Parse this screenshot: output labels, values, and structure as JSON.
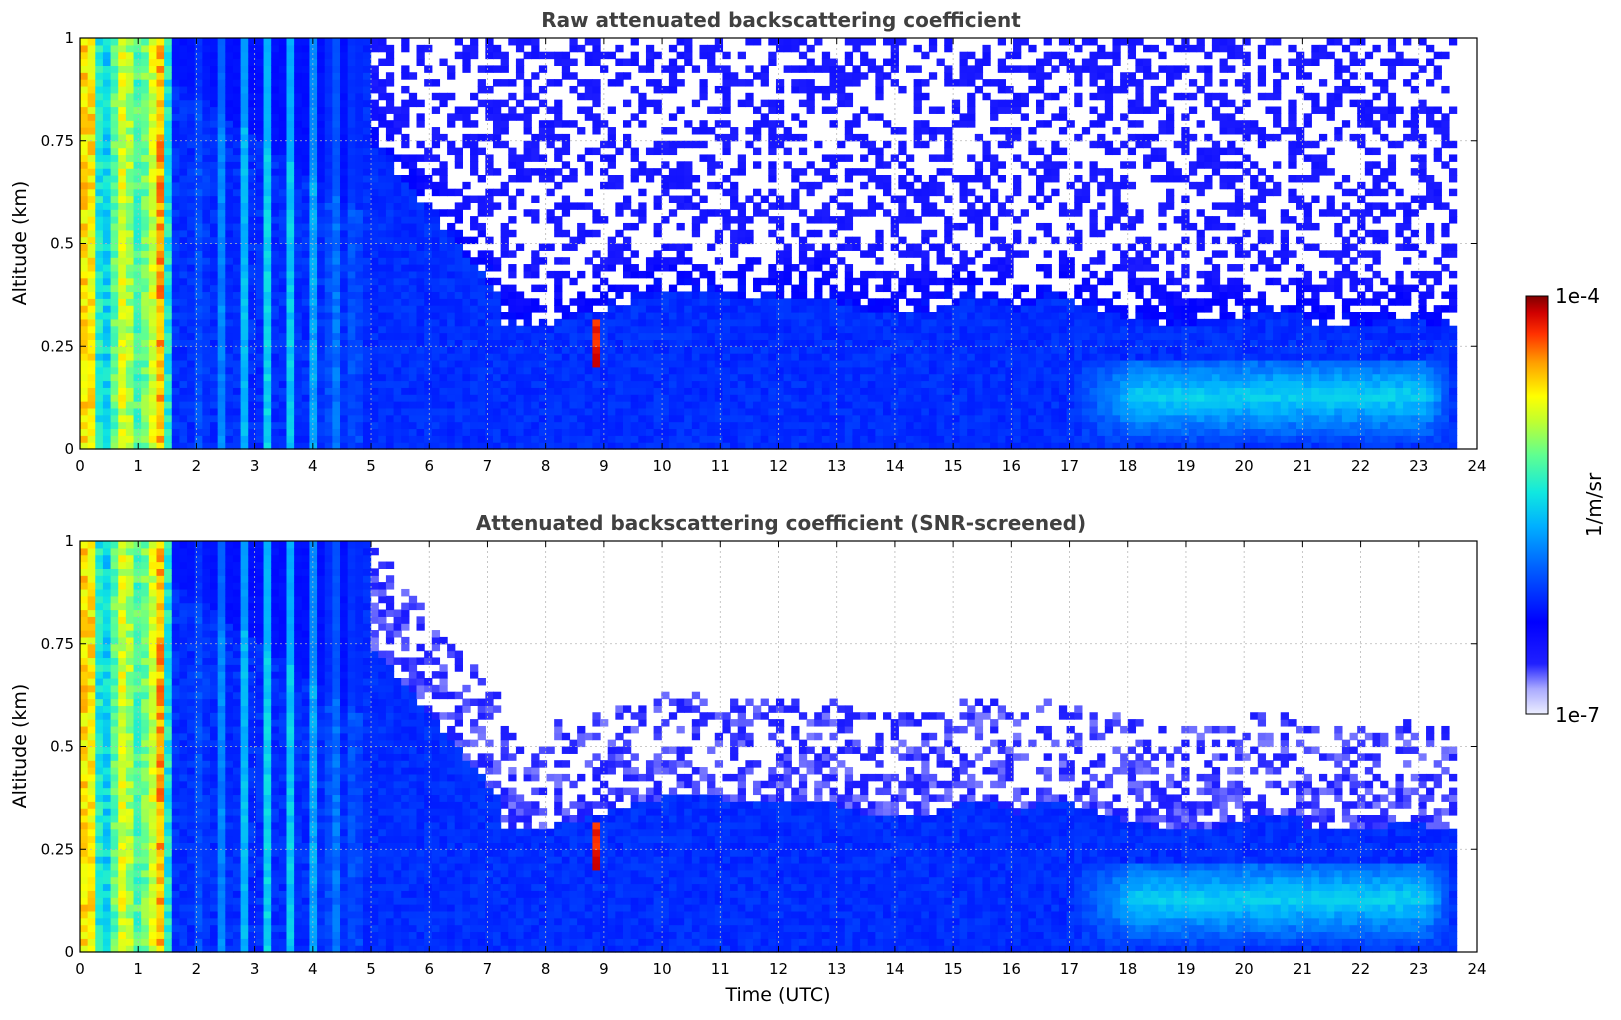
{
  "chart_data": [
    {
      "type": "heatmap",
      "title": "Raw attenuated backscattering coefficient",
      "xlabel": "",
      "ylabel": "Altitude (km)",
      "xlim": [
        0,
        24
      ],
      "ylim": [
        0,
        1
      ],
      "xticks": [
        "0",
        "1",
        "2",
        "3",
        "4",
        "5",
        "6",
        "7",
        "8",
        "9",
        "10",
        "11",
        "12",
        "13",
        "14",
        "15",
        "16",
        "17",
        "18",
        "19",
        "20",
        "21",
        "22",
        "23",
        "24"
      ],
      "yticks": [
        "0",
        "0.25",
        "0.5",
        "0.75",
        "1"
      ],
      "data_end_hour": 23.65,
      "grid": true,
      "screened": false
    },
    {
      "type": "heatmap",
      "title": "Attenuated backscattering coefficient (SNR-screened)",
      "xlabel": "Time (UTC)",
      "ylabel": "Altitude (km)",
      "xlim": [
        0,
        24
      ],
      "ylim": [
        0,
        1
      ],
      "xticks": [
        "0",
        "1",
        "2",
        "3",
        "4",
        "5",
        "6",
        "7",
        "8",
        "9",
        "10",
        "11",
        "12",
        "13",
        "14",
        "15",
        "16",
        "17",
        "18",
        "19",
        "20",
        "21",
        "22",
        "23",
        "24"
      ],
      "yticks": [
        "0",
        "0.25",
        "0.5",
        "0.75",
        "1"
      ],
      "data_end_hour": 23.65,
      "grid": true,
      "screened": true
    }
  ],
  "colorbar": {
    "label": "1/m/sr",
    "max_label": "1e-4",
    "min_label": "1e-7",
    "scale": "log",
    "colormap": "jet",
    "position": "right"
  }
}
